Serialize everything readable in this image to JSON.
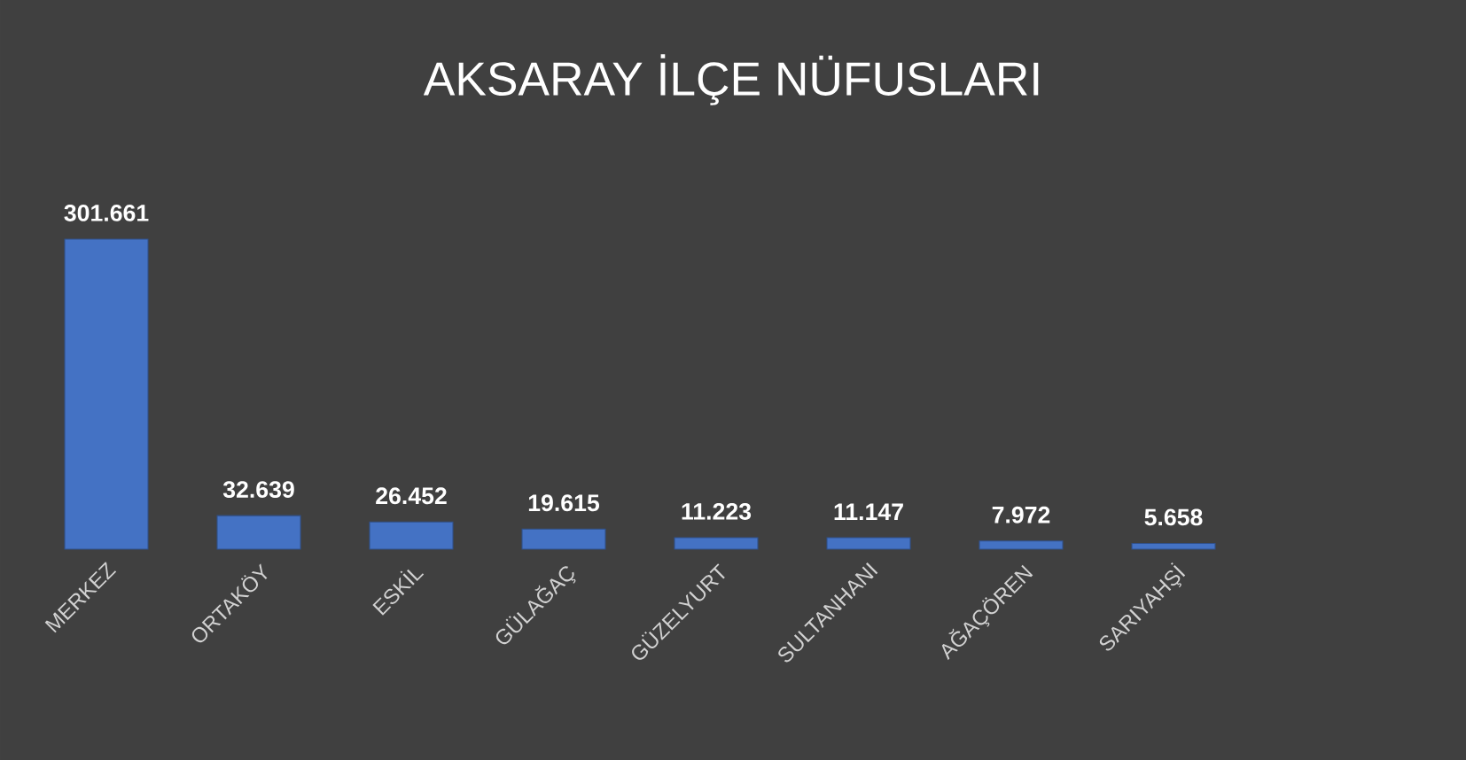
{
  "chart_data": {
    "type": "bar",
    "title": "AKSARAY İLÇE NÜFUSLARI",
    "categories": [
      "MERKEZ",
      "ORTAKÖY",
      "ESKİL",
      "GÜLAĞAÇ",
      "GÜZELYURT",
      "SULTANHANI",
      "AĞAÇÖREN",
      "SARIYAHŞİ"
    ],
    "values": [
      301661,
      32639,
      26452,
      19615,
      11223,
      11147,
      7972,
      5658
    ],
    "value_labels": [
      "301.661",
      "32.639",
      "26.452",
      "19.615",
      "11.223",
      "11.147",
      "7.972",
      "5.658"
    ],
    "color": "#4472c4"
  }
}
